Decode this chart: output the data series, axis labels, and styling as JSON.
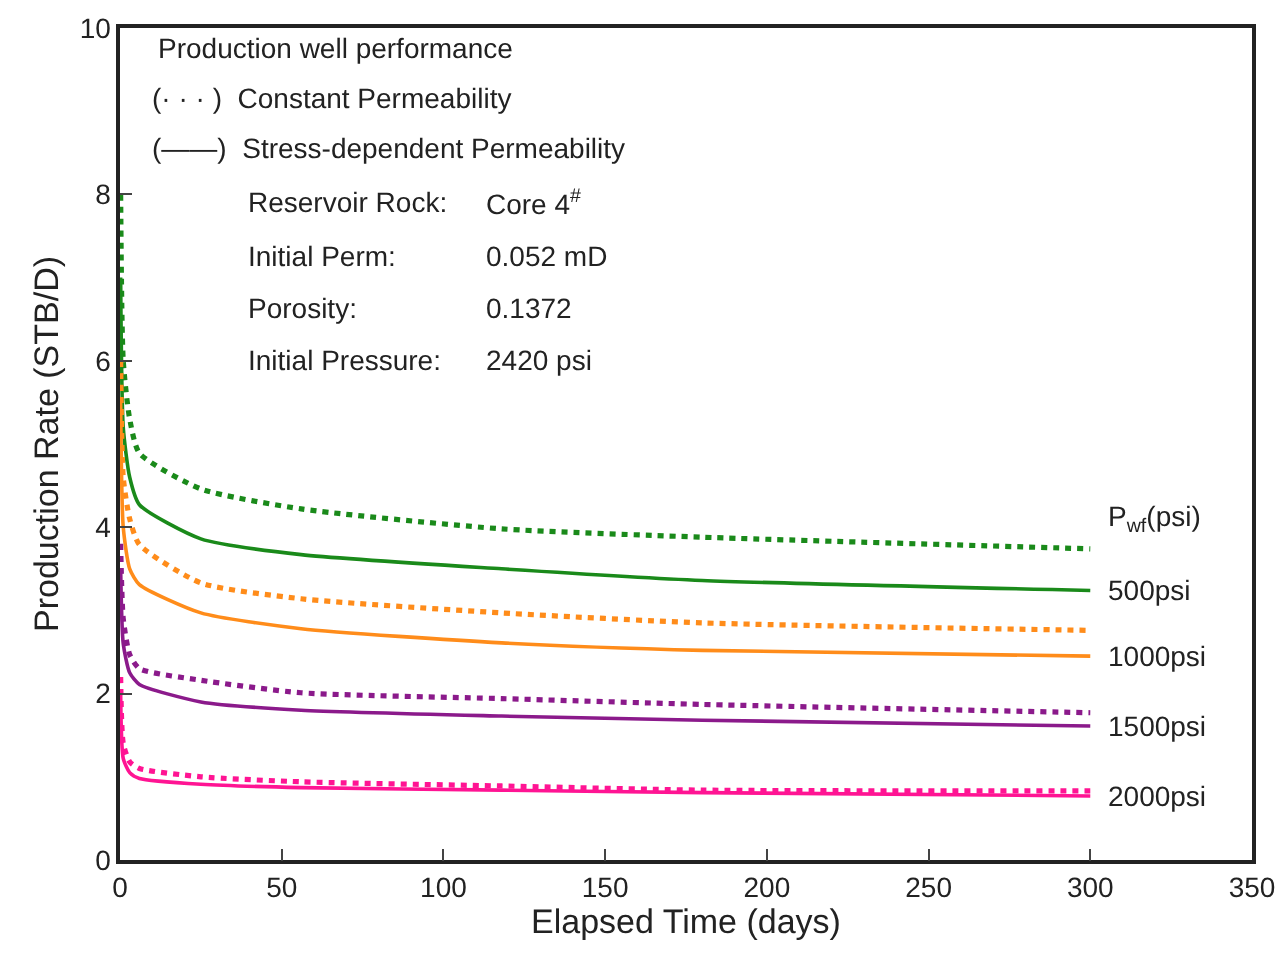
{
  "chart_data": {
    "type": "line",
    "xlabel": "Elapsed Time (days)",
    "ylabel": "Production Rate (STB/D)",
    "xlim": [
      0,
      350
    ],
    "xticks": [
      0,
      50,
      100,
      150,
      200,
      250,
      300,
      350
    ],
    "ylim": [
      0,
      10
    ],
    "yticks": [
      0,
      2,
      4,
      6,
      8,
      10
    ],
    "grid": false,
    "marker": "none",
    "series": [
      {
        "color": "#1a8a1a",
        "line_style": "solid",
        "x": [
          0.2,
          1,
          3,
          6,
          25,
          56,
          118,
          180,
          300
        ],
        "values": [
          7,
          5.2,
          4.6,
          4.27,
          3.86,
          3.67,
          3.5,
          3.36,
          3.24
        ]
      },
      {
        "color": "#1a8a1a",
        "line_style": "dotted",
        "x": [
          0.2,
          1,
          3,
          6,
          25,
          56,
          118,
          180,
          300
        ],
        "values": [
          8,
          6,
          5.3,
          4.89,
          4.46,
          4.22,
          3.98,
          3.88,
          3.74
        ]
      },
      {
        "color": "#ff8c1a",
        "line_style": "solid",
        "x": [
          0.2,
          1,
          3,
          6,
          25,
          56,
          118,
          180,
          300
        ],
        "values": [
          5.5,
          4,
          3.5,
          3.31,
          2.97,
          2.78,
          2.61,
          2.52,
          2.45
        ]
      },
      {
        "color": "#ff8c1a",
        "line_style": "dotted",
        "x": [
          0.2,
          1,
          3,
          6,
          25,
          56,
          118,
          180,
          300
        ],
        "values": [
          6,
          4.6,
          4.1,
          3.79,
          3.33,
          3.14,
          2.97,
          2.85,
          2.76
        ]
      },
      {
        "color": "#8b1a8b",
        "line_style": "solid",
        "x": [
          0.2,
          1,
          3,
          6,
          25,
          56,
          118,
          180,
          300
        ],
        "values": [
          3.5,
          2.6,
          2.25,
          2.11,
          1.9,
          1.8,
          1.73,
          1.68,
          1.61
        ]
      },
      {
        "color": "#8b1a8b",
        "line_style": "dotted",
        "x": [
          0.2,
          1,
          3,
          6,
          25,
          56,
          118,
          180,
          300
        ],
        "values": [
          3.8,
          2.9,
          2.47,
          2.3,
          2.16,
          2.01,
          1.94,
          1.87,
          1.77
        ]
      },
      {
        "color": "#ff1493",
        "line_style": "solid",
        "x": [
          0.2,
          1,
          3,
          6,
          25,
          56,
          118,
          180,
          300
        ],
        "values": [
          2,
          1.22,
          1.05,
          0.98,
          0.91,
          0.87,
          0.84,
          0.81,
          0.77
        ]
      },
      {
        "color": "#ff1493",
        "line_style": "dotted",
        "x": [
          0.2,
          1,
          3,
          6,
          25,
          56,
          118,
          180,
          300
        ],
        "values": [
          2.2,
          1.4,
          1.18,
          1.1,
          1.0,
          0.94,
          0.89,
          0.84,
          0.83
        ]
      }
    ],
    "annotations": [
      "Production well performance",
      "(· · · )  Constant Permeability",
      "(——)  Stress-dependent Permeability",
      "Reservoir Rock:",
      "Core 4$^{#}$",
      "Initial Perm:",
      "0.052 mD",
      "Porosity:",
      "0.1372",
      "Initial Pressure:",
      "2420 psi",
      "P$_{wf}$(psi)",
      "500psi",
      "1000psi",
      "1500psi",
      "2000psi"
    ]
  }
}
